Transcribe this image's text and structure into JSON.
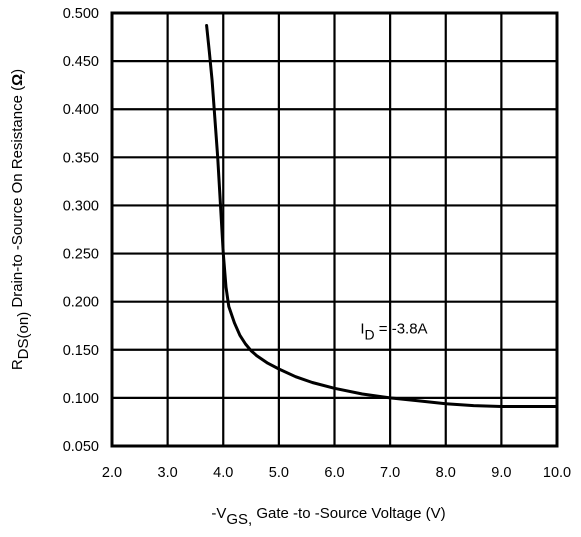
{
  "chart_data": {
    "type": "line",
    "title": "",
    "xlabel": {
      "prefix": "-V",
      "sub": "GS,",
      "rest": " Gate -to -Source Voltage  (V)"
    },
    "ylabel": {
      "prefix": "R",
      "sub": "DS(on)",
      "rest": " Drain-to -Source On Resistance (",
      "unit": "Ω",
      "close": ")"
    },
    "xlim": [
      2.0,
      10.0
    ],
    "ylim": [
      0.05,
      0.5
    ],
    "xticks": [
      "2.0",
      "3.0",
      "4.0",
      "5.0",
      "6.0",
      "7.0",
      "8.0",
      "9.0",
      "10.0"
    ],
    "yticks": [
      "0.050",
      "0.100",
      "0.150",
      "0.200",
      "0.250",
      "0.300",
      "0.350",
      "0.400",
      "0.450",
      "0.500"
    ],
    "grid": true,
    "series": [
      {
        "x": [
          3.7,
          3.75,
          3.8,
          3.85,
          3.9,
          3.95,
          4.0,
          4.05,
          4.1,
          4.2,
          4.3,
          4.4,
          4.5,
          4.6,
          4.8,
          5.0,
          5.3,
          5.6,
          6.0,
          6.5,
          7.0,
          7.5,
          8.0,
          8.5,
          9.0,
          9.5,
          10.0
        ],
        "y": [
          0.487,
          0.46,
          0.43,
          0.39,
          0.35,
          0.3,
          0.25,
          0.215,
          0.195,
          0.178,
          0.165,
          0.156,
          0.149,
          0.144,
          0.136,
          0.13,
          0.122,
          0.116,
          0.11,
          0.104,
          0.1,
          0.097,
          0.094,
          0.092,
          0.091,
          0.091,
          0.091
        ]
      }
    ],
    "annotations": [
      {
        "prefix": "I",
        "sub": "D",
        "rest": " = -3.8A",
        "x": 6.5,
        "y": 0.173
      }
    ]
  }
}
